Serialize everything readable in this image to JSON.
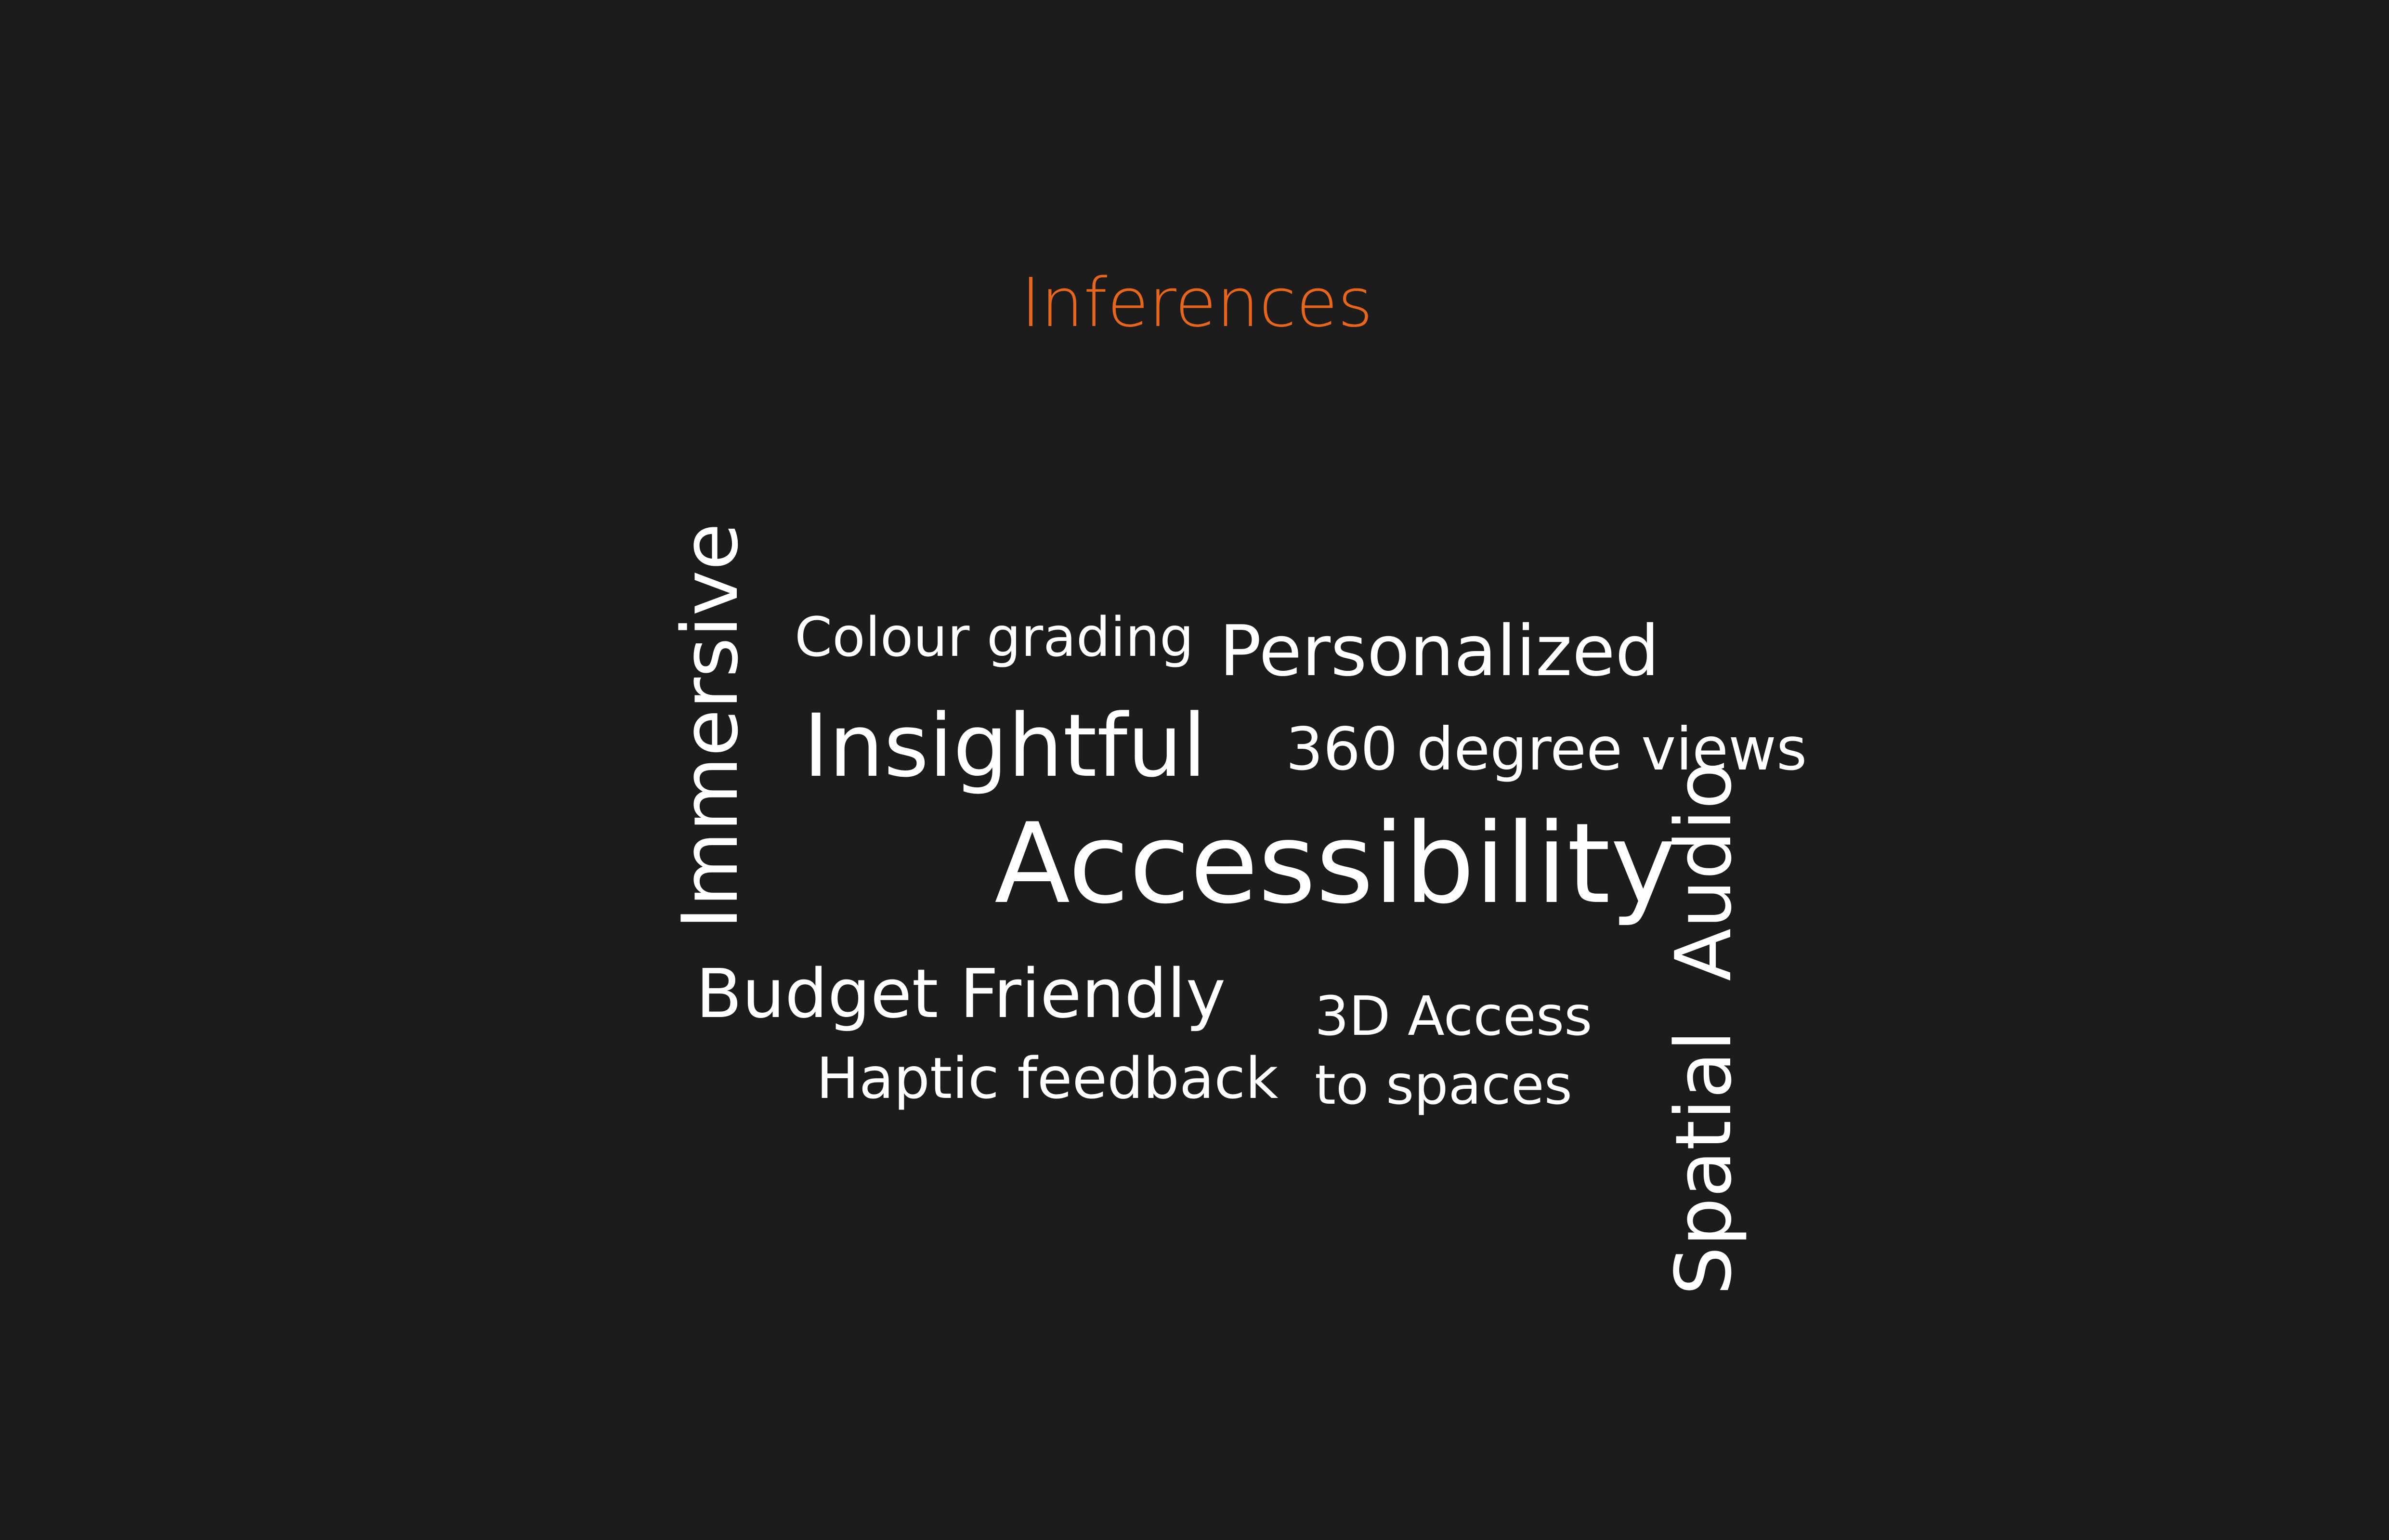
{
  "title": "Inferences",
  "colors": {
    "background": "#1c1c1c",
    "title": "#e8651c",
    "words": "#ffffff"
  },
  "words": {
    "immersive": "Immersive",
    "colour_grading": "Colour grading",
    "personalized": "Personalized",
    "insightful": "Insightful",
    "degree_views": "360 degree views",
    "accessibility": "Accessibility",
    "spatial_audio": "Spatial  Audio",
    "budget_friendly": "Budget Friendly",
    "haptic_feedback": "Haptic feedback",
    "access_3d_line1": "3D Access",
    "access_3d_line2": "to spaces"
  }
}
